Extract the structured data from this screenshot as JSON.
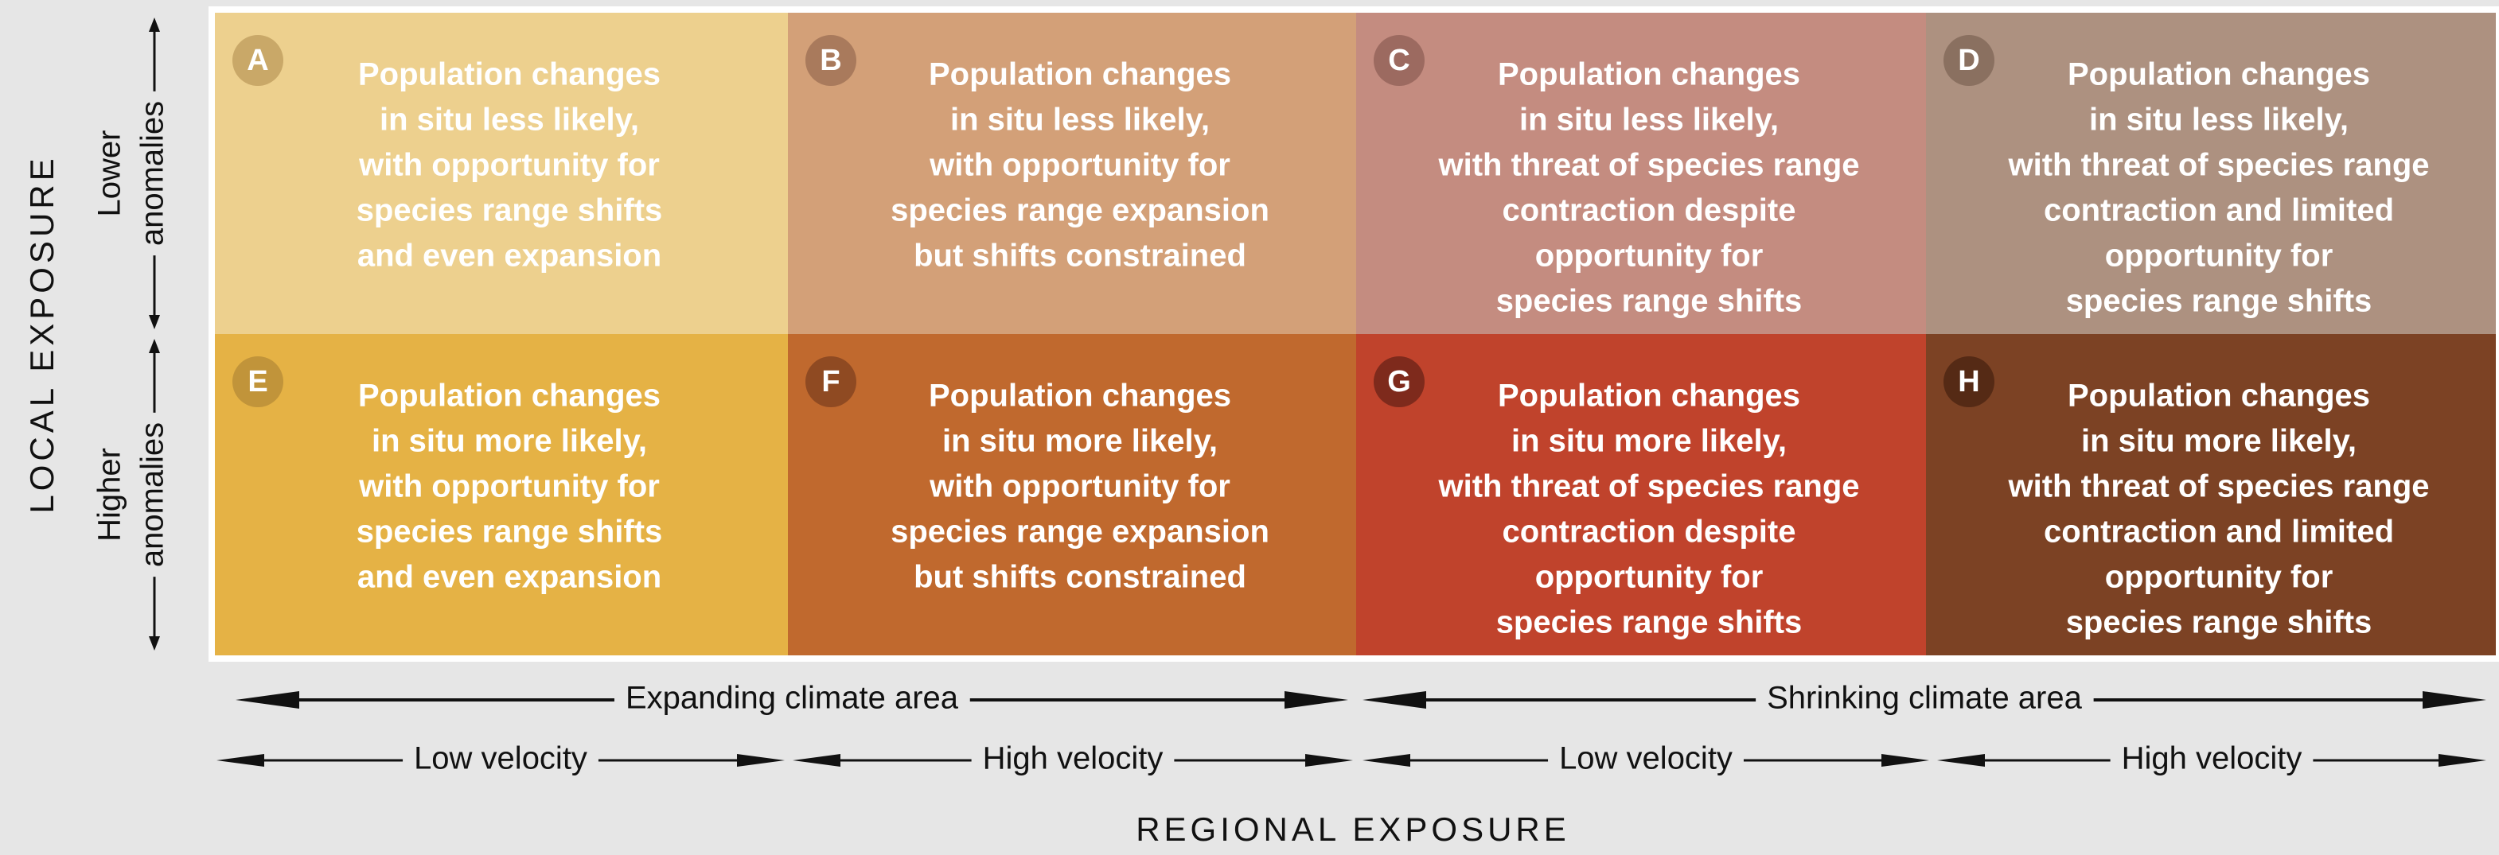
{
  "axes": {
    "y_title": "LOCAL EXPOSURE",
    "x_title": "REGIONAL EXPOSURE"
  },
  "rows": [
    [
      "Lower",
      "anomalies"
    ],
    [
      "Higher",
      "anomalies"
    ]
  ],
  "columns_top": [
    "Expanding climate area",
    "Shrinking climate area"
  ],
  "columns_bottom": [
    "Low velocity",
    "High velocity",
    "Low velocity",
    "High velocity"
  ],
  "cells": [
    {
      "letter": "A",
      "color": "#edd08e",
      "badge": "#c9a868",
      "lines": [
        "Population changes",
        "in situ less likely,",
        "with opportunity for",
        "species range shifts",
        "and even expansion"
      ]
    },
    {
      "letter": "B",
      "color": "#d3a078",
      "badge": "#a97a5c",
      "lines": [
        "Population changes",
        "in situ less likely,",
        "with opportunity for",
        "species range expansion",
        "but shifts constrained"
      ]
    },
    {
      "letter": "C",
      "color": "#c48c80",
      "badge": "#9c6a60",
      "lines": [
        "Population changes",
        "in situ less likely,",
        "with threat of species range",
        "contraction despite",
        "opportunity for",
        "species range shifts"
      ]
    },
    {
      "letter": "D",
      "color": "#ad9180",
      "badge": "#8a7060",
      "lines": [
        "Population changes",
        "in situ less likely,",
        "with threat of species range",
        "contraction and limited",
        "opportunity for",
        "species range shifts"
      ]
    },
    {
      "letter": "E",
      "color": "#e5b245",
      "badge": "#c1943a",
      "lines": [
        "Population changes",
        "in situ more likely,",
        "with opportunity for",
        "species range shifts",
        "and even expansion"
      ]
    },
    {
      "letter": "F",
      "color": "#c0692e",
      "badge": "#8f4a22",
      "lines": [
        "Population changes",
        "in situ more likely,",
        "with opportunity for",
        "species range expansion",
        "but shifts constrained"
      ]
    },
    {
      "letter": "G",
      "color": "#c0432c",
      "badge": "#7e2a1c",
      "lines": [
        "Population changes",
        "in situ more likely,",
        "with threat of species range",
        "contraction despite",
        "opportunity for",
        "species range shifts"
      ]
    },
    {
      "letter": "H",
      "color": "#7c4224",
      "badge": "#552a15",
      "lines": [
        "Population changes",
        "in situ more likely,",
        "with threat of species range",
        "contraction and limited",
        "opportunity for",
        "species range shifts"
      ]
    }
  ]
}
